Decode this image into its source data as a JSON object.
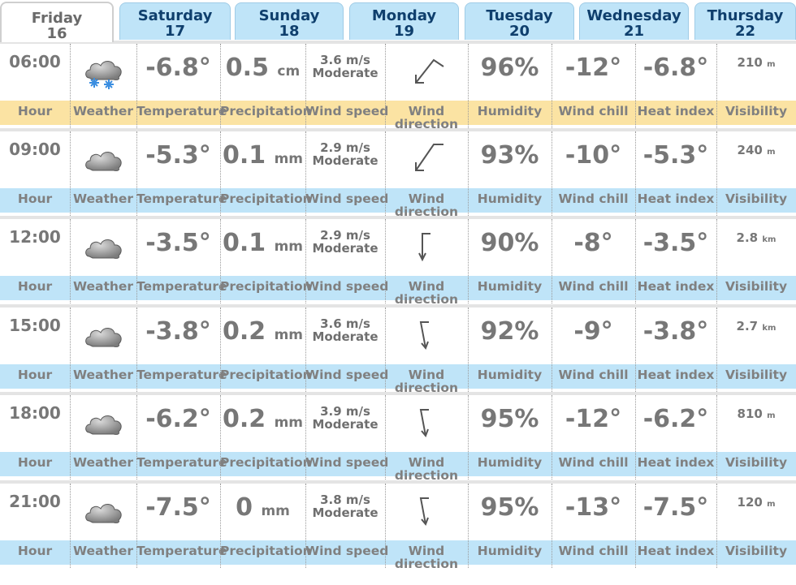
{
  "tabs": [
    {
      "day": "Friday",
      "date": "16",
      "active": true
    },
    {
      "day": "Saturday",
      "date": "17"
    },
    {
      "day": "Sunday",
      "date": "18"
    },
    {
      "day": "Monday",
      "date": "19"
    },
    {
      "day": "Tuesday",
      "date": "20"
    },
    {
      "day": "Wednesday",
      "date": "21"
    },
    {
      "day": "Thursday",
      "date": "22"
    }
  ],
  "labels": {
    "hour": "Hour",
    "weather": "Weather",
    "temperature": "Temperature",
    "precipitation": "Precipitation",
    "wind_speed": "Wind speed",
    "wind_direction_1": "Wind",
    "wind_direction_2": "direction",
    "humidity": "Humidity",
    "wind_chill": "Wind chill",
    "heat_index": "Heat index",
    "visibility": "Visibility"
  },
  "rows": [
    {
      "hour": "06:00",
      "icon": "cloud-snow-icon",
      "temp": "-6.8°",
      "precip": "0.5",
      "precip_unit": "cm",
      "wind_speed": "3.6 m/s",
      "wind_desc": "Moderate",
      "wind_dir": "arrow-southwest-icon",
      "humidity": "96%",
      "wind_chill": "-12°",
      "heat_index": "-6.8°",
      "visibility": "210",
      "visibility_unit": "m",
      "highlight": true
    },
    {
      "hour": "09:00",
      "icon": "cloud-icon",
      "temp": "-5.3°",
      "precip": "0.1",
      "precip_unit": "mm",
      "wind_speed": "2.9 m/s",
      "wind_desc": "Moderate",
      "wind_dir": "arrow-southwest-icon",
      "humidity": "93%",
      "wind_chill": "-10°",
      "heat_index": "-5.3°",
      "visibility": "240",
      "visibility_unit": "m"
    },
    {
      "hour": "12:00",
      "icon": "cloud-icon",
      "temp": "-3.5°",
      "precip": "0.1",
      "precip_unit": "mm",
      "wind_speed": "2.9 m/s",
      "wind_desc": "Moderate",
      "wind_dir": "arrow-south-icon",
      "humidity": "90%",
      "wind_chill": "-8°",
      "heat_index": "-3.5°",
      "visibility": "2.8",
      "visibility_unit": "km"
    },
    {
      "hour": "15:00",
      "icon": "cloud-icon",
      "temp": "-3.8°",
      "precip": "0.2",
      "precip_unit": "mm",
      "wind_speed": "3.6 m/s",
      "wind_desc": "Moderate",
      "wind_dir": "arrow-south-icon",
      "humidity": "92%",
      "wind_chill": "-9°",
      "heat_index": "-3.8°",
      "visibility": "2.7",
      "visibility_unit": "km"
    },
    {
      "hour": "18:00",
      "icon": "cloud-icon",
      "temp": "-6.2°",
      "precip": "0.2",
      "precip_unit": "mm",
      "wind_speed": "3.9 m/s",
      "wind_desc": "Moderate",
      "wind_dir": "arrow-south-icon",
      "humidity": "95%",
      "wind_chill": "-12°",
      "heat_index": "-6.2°",
      "visibility": "810",
      "visibility_unit": "m"
    },
    {
      "hour": "21:00",
      "icon": "cloud-icon",
      "temp": "-7.5°",
      "precip": "0",
      "precip_unit": "mm",
      "wind_speed": "3.8 m/s",
      "wind_desc": "Moderate",
      "wind_dir": "arrow-south-icon",
      "humidity": "95%",
      "wind_chill": "-13°",
      "heat_index": "-7.5°",
      "visibility": "120",
      "visibility_unit": "m"
    }
  ],
  "colors": {
    "label_band": "#bfe4f8",
    "label_band_selected": "#fbe3a3",
    "tab_text": "#0f3f6d"
  }
}
